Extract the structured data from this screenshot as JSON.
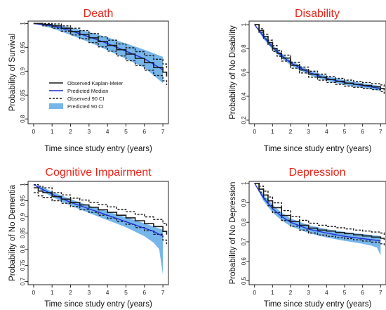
{
  "colors": {
    "title": "#e8251b",
    "observed": "#1a1a1a",
    "predicted_median": "#1f2fd6",
    "predicted_ci": "#76b6ea",
    "axis": "#222222"
  },
  "legend": {
    "placement": "bottom-left (Death panel)",
    "entries": [
      "Observed Kaplan-Meier",
      "Predicted Median",
      "Observed 90 CI",
      "Predicted 90 CI"
    ]
  },
  "chart_data": [
    {
      "type": "line",
      "title": "Death",
      "xlabel": "Time since study entry (years)",
      "ylabel": "Probability of Survival",
      "xlim": [
        -0.3,
        7.3
      ],
      "ylim": [
        0.79,
        1.005
      ],
      "xticks": [
        0,
        1,
        2,
        3,
        4,
        5,
        6,
        7
      ],
      "yticks": [
        0.8,
        0.85,
        0.9,
        0.95,
        1
      ],
      "ytick_labels": [
        "0.8",
        "0.85",
        "0.9",
        "0.95",
        "1"
      ],
      "grid": false,
      "legend": true,
      "observed": {
        "x": [
          0,
          0.5,
          1,
          1.5,
          2,
          2.5,
          3,
          3.5,
          4,
          4.5,
          5,
          5.5,
          6,
          6.5,
          7,
          7.2
        ],
        "y": [
          1,
          0.998,
          0.995,
          0.99,
          0.983,
          0.977,
          0.97,
          0.962,
          0.954,
          0.945,
          0.936,
          0.927,
          0.918,
          0.908,
          0.898,
          0.889
        ]
      },
      "observed_ci_upper": {
        "x": [
          0,
          0.5,
          1,
          1.5,
          2,
          2.5,
          3,
          3.5,
          4,
          4.5,
          5,
          5.5,
          6,
          6.5,
          7,
          7.2
        ],
        "y": [
          1,
          1,
          0.999,
          0.995,
          0.99,
          0.985,
          0.979,
          0.972,
          0.965,
          0.957,
          0.949,
          0.941,
          0.933,
          0.925,
          0.915,
          0.907
        ]
      },
      "observed_ci_lower": {
        "x": [
          0,
          0.5,
          1,
          1.5,
          2,
          2.5,
          3,
          3.5,
          4,
          4.5,
          5,
          5.5,
          6,
          6.5,
          7,
          7.2
        ],
        "y": [
          1,
          0.995,
          0.99,
          0.984,
          0.976,
          0.968,
          0.96,
          0.951,
          0.942,
          0.932,
          0.922,
          0.912,
          0.902,
          0.891,
          0.88,
          0.871
        ]
      },
      "predicted_median": {
        "x": [
          0,
          1,
          2,
          3,
          4,
          5,
          6,
          7
        ],
        "y": [
          1,
          0.995,
          0.985,
          0.972,
          0.958,
          0.942,
          0.926,
          0.903
        ]
      },
      "predicted_ci_upper": {
        "x": [
          0,
          1,
          2,
          3,
          4,
          5,
          6,
          7
        ],
        "y": [
          1,
          0.999,
          0.992,
          0.982,
          0.971,
          0.958,
          0.945,
          0.93
        ]
      },
      "predicted_ci_lower": {
        "x": [
          0,
          1,
          2,
          3,
          4,
          5,
          6,
          7
        ],
        "y": [
          1,
          0.99,
          0.976,
          0.961,
          0.944,
          0.926,
          0.907,
          0.875
        ]
      }
    },
    {
      "type": "line",
      "title": "Disability",
      "xlabel": "Time since study entry (years)",
      "ylabel": "Probability of No Disability",
      "xlim": [
        -0.3,
        7.3
      ],
      "ylim": [
        0.17,
        1.03
      ],
      "xticks": [
        0,
        1,
        2,
        3,
        4,
        5,
        6,
        7
      ],
      "yticks": [
        0.2,
        0.4,
        0.6,
        0.8,
        1
      ],
      "ytick_labels": [
        "0.2",
        "0.4",
        "0.6",
        "0.8",
        "1"
      ],
      "grid": false,
      "legend": false,
      "observed": {
        "x": [
          0,
          0.25,
          0.5,
          0.75,
          1,
          1.25,
          1.5,
          2,
          2.5,
          3,
          3.5,
          4,
          4.5,
          5,
          5.5,
          6,
          6.5,
          7,
          7.2
        ],
        "y": [
          1,
          0.95,
          0.9,
          0.85,
          0.8,
          0.76,
          0.72,
          0.66,
          0.62,
          0.585,
          0.56,
          0.54,
          0.525,
          0.51,
          0.5,
          0.49,
          0.48,
          0.465,
          0.45
        ]
      },
      "observed_ci_upper": {
        "x": [
          0,
          0.25,
          0.5,
          0.75,
          1,
          1.25,
          1.5,
          2,
          2.5,
          3,
          3.5,
          4,
          4.5,
          5,
          5.5,
          6,
          6.5,
          7,
          7.2
        ],
        "y": [
          1,
          0.965,
          0.92,
          0.87,
          0.825,
          0.785,
          0.745,
          0.685,
          0.645,
          0.61,
          0.585,
          0.565,
          0.55,
          0.535,
          0.525,
          0.515,
          0.505,
          0.495,
          0.48
        ]
      },
      "observed_ci_lower": {
        "x": [
          0,
          0.25,
          0.5,
          0.75,
          1,
          1.25,
          1.5,
          2,
          2.5,
          3,
          3.5,
          4,
          4.5,
          5,
          5.5,
          6,
          6.5,
          7,
          7.2
        ],
        "y": [
          1,
          0.935,
          0.88,
          0.83,
          0.775,
          0.735,
          0.695,
          0.635,
          0.595,
          0.56,
          0.535,
          0.515,
          0.5,
          0.485,
          0.475,
          0.465,
          0.455,
          0.44,
          0.42
        ]
      },
      "predicted_median": {
        "x": [
          0,
          0.5,
          1,
          1.5,
          2,
          3,
          4,
          5,
          6,
          7
        ],
        "y": [
          1,
          0.9,
          0.81,
          0.74,
          0.68,
          0.6,
          0.55,
          0.515,
          0.49,
          0.465
        ]
      },
      "predicted_ci_upper": {
        "x": [
          0,
          0.5,
          1,
          1.5,
          2,
          3,
          4,
          5,
          6,
          7
        ],
        "y": [
          1,
          0.92,
          0.83,
          0.76,
          0.7,
          0.62,
          0.57,
          0.535,
          0.51,
          0.485
        ]
      },
      "predicted_ci_lower": {
        "x": [
          0,
          0.5,
          1,
          1.5,
          2,
          3,
          4,
          5,
          6,
          7
        ],
        "y": [
          1,
          0.88,
          0.79,
          0.72,
          0.66,
          0.58,
          0.53,
          0.495,
          0.47,
          0.445
        ]
      }
    },
    {
      "type": "line",
      "title": "Cognitive Impairment",
      "xlabel": "Time since study entry (years)",
      "ylabel": "Probability of No Dementia",
      "xlim": [
        -0.3,
        7.3
      ],
      "ylim": [
        0.69,
        1.01
      ],
      "xticks": [
        0,
        1,
        2,
        3,
        4,
        5,
        6,
        7
      ],
      "yticks": [
        0.7,
        0.75,
        0.8,
        0.85,
        0.9,
        0.95,
        1
      ],
      "ytick_labels": [
        "0.7",
        "0.75",
        "0.8",
        "0.85",
        "0.9",
        "0.95",
        "1"
      ],
      "grid": false,
      "legend": false,
      "observed": {
        "x": [
          0,
          0.25,
          0.5,
          1,
          1.5,
          2,
          2.5,
          3,
          3.5,
          4,
          4.5,
          5,
          5.5,
          6,
          6.5,
          7,
          7.2
        ],
        "y": [
          0.99,
          0.98,
          0.975,
          0.963,
          0.955,
          0.945,
          0.937,
          0.93,
          0.922,
          0.914,
          0.905,
          0.897,
          0.888,
          0.879,
          0.87,
          0.855,
          0.845
        ]
      },
      "observed_ci_upper": {
        "x": [
          0,
          0.25,
          0.5,
          1,
          1.5,
          2,
          2.5,
          3,
          3.5,
          4,
          4.5,
          5,
          5.5,
          6,
          6.5,
          7,
          7.2
        ],
        "y": [
          1,
          0.995,
          0.99,
          0.975,
          0.968,
          0.958,
          0.952,
          0.945,
          0.938,
          0.931,
          0.923,
          0.916,
          0.908,
          0.9,
          0.892,
          0.88,
          0.87
        ]
      },
      "observed_ci_lower": {
        "x": [
          0,
          0.25,
          0.5,
          1,
          1.5,
          2,
          2.5,
          3,
          3.5,
          4,
          4.5,
          5,
          5.5,
          6,
          6.5,
          7,
          7.2
        ],
        "y": [
          0.975,
          0.965,
          0.96,
          0.95,
          0.942,
          0.932,
          0.922,
          0.914,
          0.905,
          0.896,
          0.886,
          0.877,
          0.867,
          0.857,
          0.846,
          0.828,
          0.816
        ]
      },
      "predicted_median": {
        "x": [
          0,
          0.5,
          1,
          2,
          3,
          4,
          5,
          6,
          6.5,
          7
        ],
        "y": [
          1,
          0.985,
          0.97,
          0.945,
          0.925,
          0.905,
          0.885,
          0.865,
          0.855,
          0.84
        ]
      },
      "predicted_ci_upper": {
        "x": [
          0,
          0.5,
          1,
          2,
          3,
          4,
          5,
          6,
          6.5,
          7
        ],
        "y": [
          1,
          0.992,
          0.978,
          0.955,
          0.935,
          0.917,
          0.899,
          0.88,
          0.87,
          0.86
        ]
      },
      "predicted_ci_lower": {
        "x": [
          0,
          0.5,
          1,
          2,
          3,
          4,
          5,
          6,
          6.5,
          6.8,
          7
        ],
        "y": [
          1,
          0.978,
          0.962,
          0.935,
          0.912,
          0.89,
          0.868,
          0.84,
          0.82,
          0.8,
          0.72
        ]
      }
    },
    {
      "type": "line",
      "title": "Depression",
      "xlabel": "Time since study entry (years)",
      "ylabel": "Probability of No Depression",
      "xlim": [
        -0.3,
        7.3
      ],
      "ylim": [
        0.48,
        1.01
      ],
      "xticks": [
        0,
        1,
        2,
        3,
        4,
        5,
        6,
        7
      ],
      "yticks": [
        0.5,
        0.6,
        0.7,
        0.8,
        0.9,
        1
      ],
      "ytick_labels": [
        "0.5",
        "0.6",
        "0.7",
        "0.8",
        "0.9",
        "1"
      ],
      "grid": false,
      "legend": false,
      "observed": {
        "x": [
          0,
          0.25,
          0.5,
          0.75,
          1,
          1.5,
          2,
          2.5,
          3,
          3.5,
          4,
          4.5,
          5,
          5.5,
          6,
          6.5,
          7,
          7.2
        ],
        "y": [
          1,
          0.97,
          0.94,
          0.91,
          0.875,
          0.835,
          0.805,
          0.785,
          0.77,
          0.76,
          0.755,
          0.748,
          0.742,
          0.736,
          0.73,
          0.724,
          0.718,
          0.71
        ]
      },
      "observed_ci_upper": {
        "x": [
          0,
          0.25,
          0.5,
          0.75,
          1,
          1.5,
          2,
          2.5,
          3,
          3.5,
          4,
          4.5,
          5,
          5.5,
          6,
          6.5,
          7,
          7.2
        ],
        "y": [
          1,
          0.985,
          0.96,
          0.93,
          0.9,
          0.86,
          0.83,
          0.81,
          0.795,
          0.785,
          0.778,
          0.772,
          0.766,
          0.76,
          0.755,
          0.75,
          0.745,
          0.735
        ]
      },
      "observed_ci_lower": {
        "x": [
          0,
          0.25,
          0.5,
          0.75,
          1,
          1.5,
          2,
          2.5,
          3,
          3.5,
          4,
          4.5,
          5,
          5.5,
          6,
          6.5,
          7,
          7.2
        ],
        "y": [
          1,
          0.955,
          0.92,
          0.885,
          0.85,
          0.81,
          0.78,
          0.76,
          0.745,
          0.735,
          0.728,
          0.722,
          0.716,
          0.71,
          0.704,
          0.698,
          0.69,
          0.68
        ]
      },
      "predicted_median": {
        "x": [
          0,
          0.5,
          1,
          1.5,
          2,
          3,
          4,
          5,
          6,
          7
        ],
        "y": [
          1,
          0.925,
          0.87,
          0.83,
          0.8,
          0.765,
          0.745,
          0.728,
          0.716,
          0.705
        ]
      },
      "predicted_ci_upper": {
        "x": [
          0,
          0.5,
          1,
          1.5,
          2,
          3,
          4,
          5,
          6,
          7
        ],
        "y": [
          1,
          0.94,
          0.89,
          0.85,
          0.82,
          0.785,
          0.765,
          0.75,
          0.74,
          0.73
        ]
      },
      "predicted_ci_lower": {
        "x": [
          0,
          0.5,
          1,
          1.5,
          2,
          3,
          4,
          5,
          6,
          6.5,
          6.8,
          7
        ],
        "y": [
          1,
          0.91,
          0.85,
          0.81,
          0.78,
          0.745,
          0.722,
          0.705,
          0.69,
          0.68,
          0.67,
          0.63
        ]
      }
    }
  ]
}
